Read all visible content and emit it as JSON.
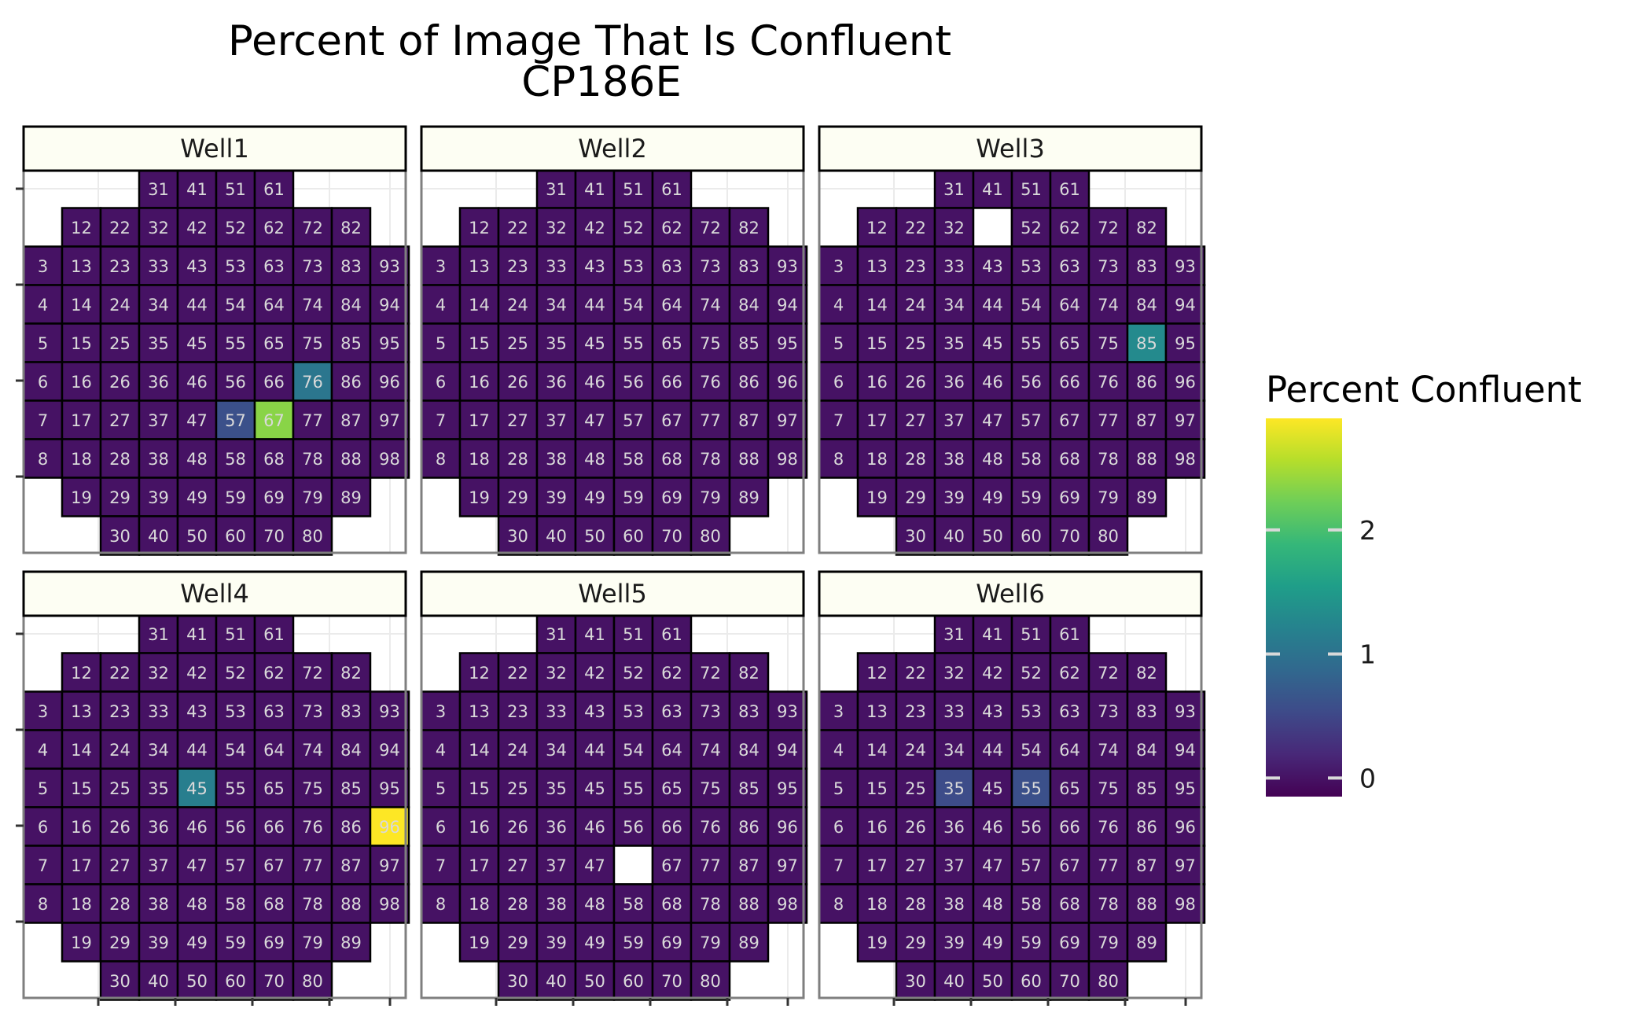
{
  "chart_data": {
    "type": "heatmap",
    "title": "Percent of Image That Is Confluent",
    "subtitle": "CP186E",
    "legend": {
      "title": "Percent Confluent",
      "position": "right",
      "ticks": [
        0,
        1,
        2
      ],
      "tick_labels": [
        "0",
        "1",
        "2"
      ],
      "range": [
        -0.15,
        2.9
      ],
      "colormap": [
        "#440154",
        "#482878",
        "#3e4a89",
        "#31688e",
        "#26828e",
        "#1f9e89",
        "#35b779",
        "#6ece58",
        "#b5de2b",
        "#fde725"
      ]
    },
    "grid": true,
    "missing_color": "#ffffff",
    "facets": [
      {
        "name": "Well1",
        "values": {
          "57": 0.6,
          "67": 2.35,
          "76": 1.05
        },
        "missing": []
      },
      {
        "name": "Well2",
        "values": {},
        "missing": []
      },
      {
        "name": "Well3",
        "values": {
          "85": 1.3
        },
        "missing": [
          42
        ]
      },
      {
        "name": "Well4",
        "values": {
          "45": 1.15,
          "96": 2.9
        },
        "missing": []
      },
      {
        "name": "Well5",
        "values": {},
        "missing": [
          57
        ]
      },
      {
        "name": "Well6",
        "values": {
          "35": 0.55,
          "55": 0.6
        },
        "missing": []
      }
    ],
    "cell_layout": {
      "rows": [
        {
          "ids": [
            31,
            41,
            51,
            61
          ]
        },
        {
          "ids": [
            12,
            22,
            32,
            42,
            52,
            62,
            72,
            82
          ]
        },
        {
          "ids": [
            3,
            13,
            23,
            33,
            43,
            53,
            63,
            73,
            83,
            93
          ]
        },
        {
          "ids": [
            4,
            14,
            24,
            34,
            44,
            54,
            64,
            74,
            84,
            94
          ]
        },
        {
          "ids": [
            5,
            15,
            25,
            35,
            45,
            55,
            65,
            75,
            85,
            95
          ]
        },
        {
          "ids": [
            6,
            16,
            26,
            36,
            46,
            56,
            66,
            76,
            86,
            96
          ]
        },
        {
          "ids": [
            7,
            17,
            27,
            37,
            47,
            57,
            67,
            77,
            87,
            97
          ]
        },
        {
          "ids": [
            8,
            18,
            28,
            38,
            48,
            58,
            68,
            78,
            88,
            98
          ]
        },
        {
          "ids": [
            19,
            29,
            39,
            49,
            59,
            69,
            79,
            89
          ]
        },
        {
          "ids": [
            30,
            40,
            50,
            60,
            70,
            80
          ]
        }
      ]
    }
  }
}
